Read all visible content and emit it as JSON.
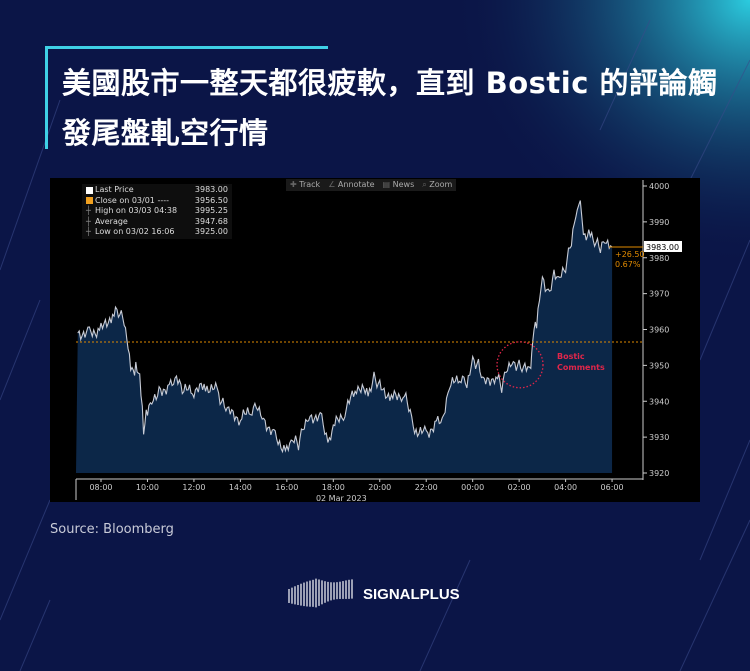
{
  "title": "美國股市一整天都很疲軟，直到 Bostic 的評論觸發尾盤軋空行情",
  "source": "Source:  Bloomberg",
  "brand": "SIGNALPLUS",
  "colors": {
    "background": "#0b1547",
    "accent": "#3fd0e6",
    "area": "#0c2748",
    "line": "#c8ccd6",
    "close_line": "#e08a00",
    "annotation": "#e0264a"
  },
  "toolbar": [
    {
      "icon": "plus-icon",
      "label": "Track"
    },
    {
      "icon": "pencil-icon",
      "label": "Annotate"
    },
    {
      "icon": "news-icon",
      "label": "News"
    },
    {
      "icon": "magnifier-icon",
      "label": "Zoom"
    }
  ],
  "legend": [
    {
      "label": "Last Price",
      "value": "3983.00",
      "color": "#ffffff"
    },
    {
      "label": "Close on 03/01 ----",
      "value": "3956.50",
      "color": "#f0a020"
    },
    {
      "label": "High on 03/03 04:38",
      "value": "3995.25"
    },
    {
      "label": "Average",
      "value": "3947.68"
    },
    {
      "label": "Low on 03/02 16:06",
      "value": "3925.00"
    }
  ],
  "chart_data": {
    "type": "area",
    "title": "",
    "xlabel": "02 Mar 2023",
    "ylabel": "",
    "ylim": [
      3920,
      4000
    ],
    "yticks": [
      "3920",
      "3930",
      "3940",
      "3950",
      "3960",
      "3970",
      "3980",
      "3990",
      "4000"
    ],
    "xticks": [
      "08:00",
      "10:00",
      "12:00",
      "14:00",
      "16:00",
      "18:00",
      "20:00",
      "22:00",
      "00:00",
      "02:00",
      "04:00",
      "06:00"
    ],
    "grid": false,
    "previous_close": 3956.5,
    "last_price_label": "3983.00",
    "change_label": "+26.50",
    "change_pct_label": "0.67%",
    "annotation": {
      "text_line1": "Bostic",
      "text_line2": "Comments",
      "time": "2023-03-03 02:10",
      "price": 3951
    },
    "series": [
      {
        "x": [
          "2023-03-02 07:00",
          "2023-03-02 07:30",
          "2023-03-02 08:00",
          "2023-03-02 08:30",
          "2023-03-02 08:45",
          "2023-03-02 09:00",
          "2023-03-02 09:10",
          "2023-03-02 09:20",
          "2023-03-02 09:30",
          "2023-03-02 09:40",
          "2023-03-02 09:50",
          "2023-03-02 10:00",
          "2023-03-02 10:15",
          "2023-03-02 10:30",
          "2023-03-02 11:00",
          "2023-03-02 11:15",
          "2023-03-02 11:30",
          "2023-03-02 12:00",
          "2023-03-02 12:30",
          "2023-03-02 13:00",
          "2023-03-02 13:15",
          "2023-03-02 13:30",
          "2023-03-02 14:00",
          "2023-03-02 14:30",
          "2023-03-02 14:45",
          "2023-03-02 15:00",
          "2023-03-02 15:30",
          "2023-03-02 16:00",
          "2023-03-02 16:15",
          "2023-03-02 16:30",
          "2023-03-02 16:45",
          "2023-03-02 17:00",
          "2023-03-02 17:30",
          "2023-03-02 17:50",
          "2023-03-02 18:00",
          "2023-03-02 18:30",
          "2023-03-02 19:00",
          "2023-03-02 19:30",
          "2023-03-02 19:45",
          "2023-03-02 20:00",
          "2023-03-02 20:30",
          "2023-03-02 21:00",
          "2023-03-02 21:15",
          "2023-03-02 21:30",
          "2023-03-02 22:00",
          "2023-03-02 22:30",
          "2023-03-02 22:45",
          "2023-03-02 23:00",
          "2023-03-02 23:30",
          "2023-03-02 23:45",
          "2023-03-03 00:00",
          "2023-03-03 00:15",
          "2023-03-03 00:30",
          "2023-03-03 01:00",
          "2023-03-03 01:15",
          "2023-03-03 01:30",
          "2023-03-03 01:45",
          "2023-03-03 02:00",
          "2023-03-03 02:15",
          "2023-03-03 02:30",
          "2023-03-03 02:35",
          "2023-03-03 02:45",
          "2023-03-03 03:00",
          "2023-03-03 03:15",
          "2023-03-03 03:30",
          "2023-03-03 03:45",
          "2023-03-03 04:00",
          "2023-03-03 04:15",
          "2023-03-03 04:30",
          "2023-03-03 04:38",
          "2023-03-03 04:50",
          "2023-03-03 05:00",
          "2023-03-03 05:15",
          "2023-03-03 05:30",
          "2023-03-03 05:45",
          "2023-03-03 06:00"
        ],
        "y": [
          3959,
          3959,
          3960,
          3964,
          3965,
          3963,
          3955,
          3948,
          3949,
          3947,
          3932,
          3938,
          3941,
          3943,
          3944,
          3946,
          3943,
          3943,
          3944,
          3943,
          3939,
          3937,
          3935,
          3938,
          3939,
          3935,
          3930,
          3926,
          3929,
          3928,
          3934,
          3936,
          3935,
          3928,
          3933,
          3937,
          3944,
          3942,
          3947,
          3944,
          3941,
          3942,
          3939,
          3932,
          3931,
          3934,
          3935,
          3944,
          3947,
          3945,
          3952,
          3950,
          3945,
          3947,
          3944,
          3950,
          3951,
          3950,
          3949,
          3949,
          3958,
          3962,
          3975,
          3970,
          3975,
          3974,
          3977,
          3985,
          3994,
          3995,
          3985,
          3987,
          3984,
          3983,
          3985,
          3983
        ]
      }
    ]
  }
}
